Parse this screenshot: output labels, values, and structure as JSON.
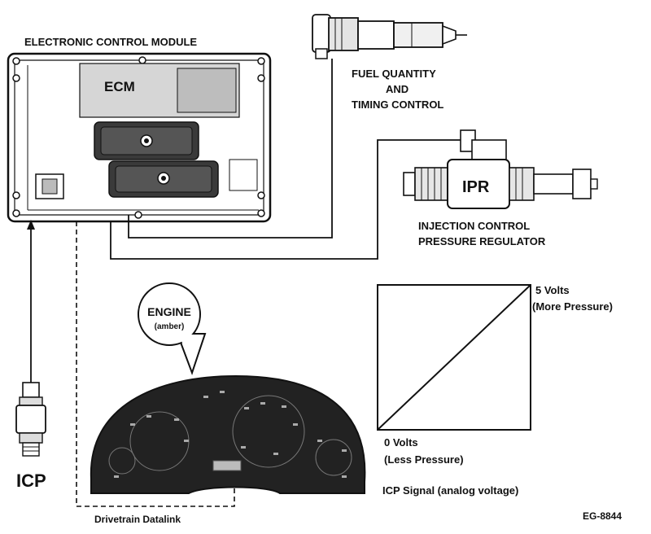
{
  "ecm": {
    "title": "ELECTRONIC CONTROL MODULE",
    "label": "ECM"
  },
  "injector": {
    "label_line1": "FUEL QUANTITY",
    "label_line2": "AND",
    "label_line3": "TIMING CONTROL"
  },
  "ipr": {
    "label": "IPR",
    "caption_line1": "INJECTION CONTROL",
    "caption_line2": "PRESSURE REGULATOR"
  },
  "icp": {
    "label": "ICP"
  },
  "engine_lamp": {
    "label": "ENGINE",
    "sublabel": "(amber)"
  },
  "datalink": {
    "label": "Drivetrain  Datalink"
  },
  "signal_graph": {
    "max_line1": "5 Volts",
    "max_line2": "(More Pressure)",
    "min_line1": "0 Volts",
    "min_line2": "(Less Pressure)",
    "caption": "ICP Signal (analog voltage)"
  },
  "figure_id": "EG-8844",
  "colors": {
    "ink": "#111111",
    "panel": "#222222",
    "paper": "#ffffff",
    "shade": "#cfcfcf"
  }
}
